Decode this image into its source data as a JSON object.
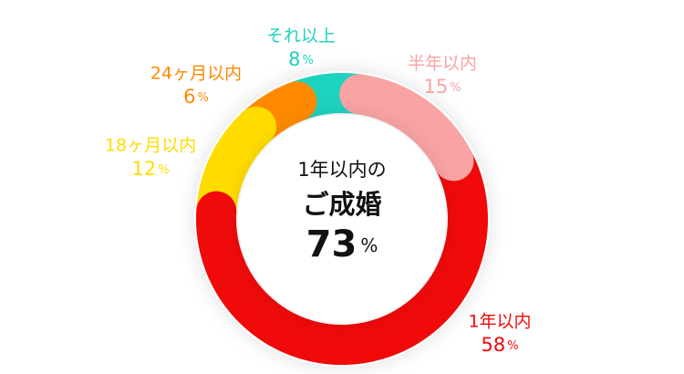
{
  "chart_data": {
    "type": "donut",
    "categories": [
      "半年以内",
      "1年以内",
      "18ヶ月以内",
      "24ヶ月以内",
      "それ以上"
    ],
    "values": [
      15,
      58,
      12,
      6,
      8
    ],
    "unit": "%",
    "colors": [
      "#f9a3a3",
      "#f00a0a",
      "#ffdc00",
      "#ff8a00",
      "#1ed2c0"
    ],
    "center_lines": [
      "1年以内の",
      "ご成婚"
    ],
    "center_value": 73
  }
}
